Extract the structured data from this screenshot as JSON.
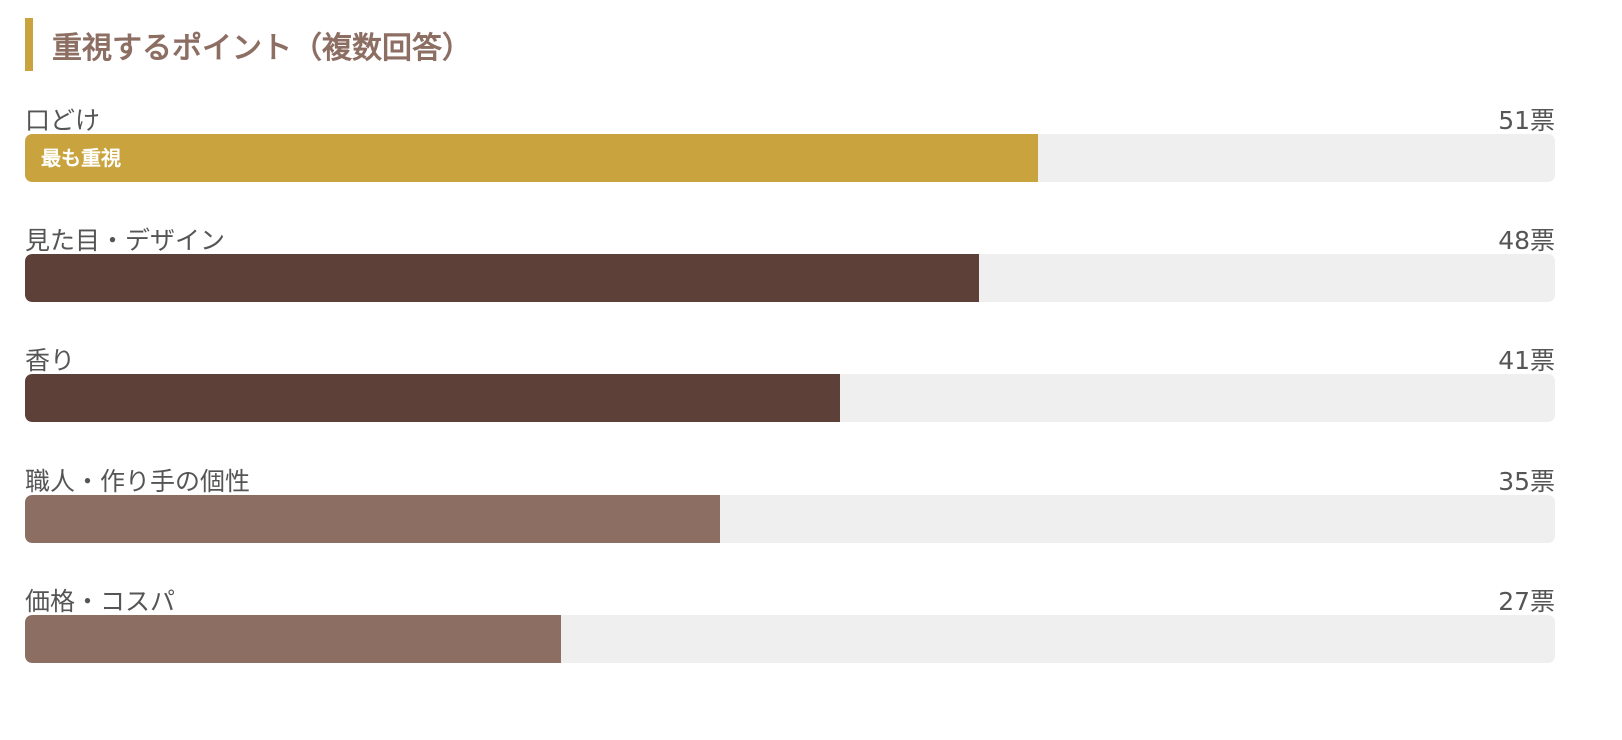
{
  "title": "重視するポイント（複数回答）",
  "colors": {
    "accent": "#c9a33e",
    "dark": "#5d4037",
    "light": "#8d6e63",
    "track": "#efefef",
    "title": "#8d6e63"
  },
  "chart_data": {
    "type": "bar",
    "orientation": "horizontal",
    "title": "重視するポイント（複数回答）",
    "unit": "票",
    "xlim": [
      0,
      77
    ],
    "categories": [
      "口どけ",
      "見た目・デザイン",
      "香り",
      "職人・作り手の個性",
      "価格・コスパ"
    ],
    "values": [
      51,
      48,
      41,
      35,
      27
    ],
    "count_labels": [
      "51票",
      "48票",
      "41票",
      "35票",
      "27票"
    ],
    "bar_colors": [
      "#c9a33e",
      "#5d4037",
      "#5d4037",
      "#8d6e63",
      "#8d6e63"
    ],
    "badges": [
      "最も重視",
      "",
      "",
      "",
      ""
    ]
  }
}
